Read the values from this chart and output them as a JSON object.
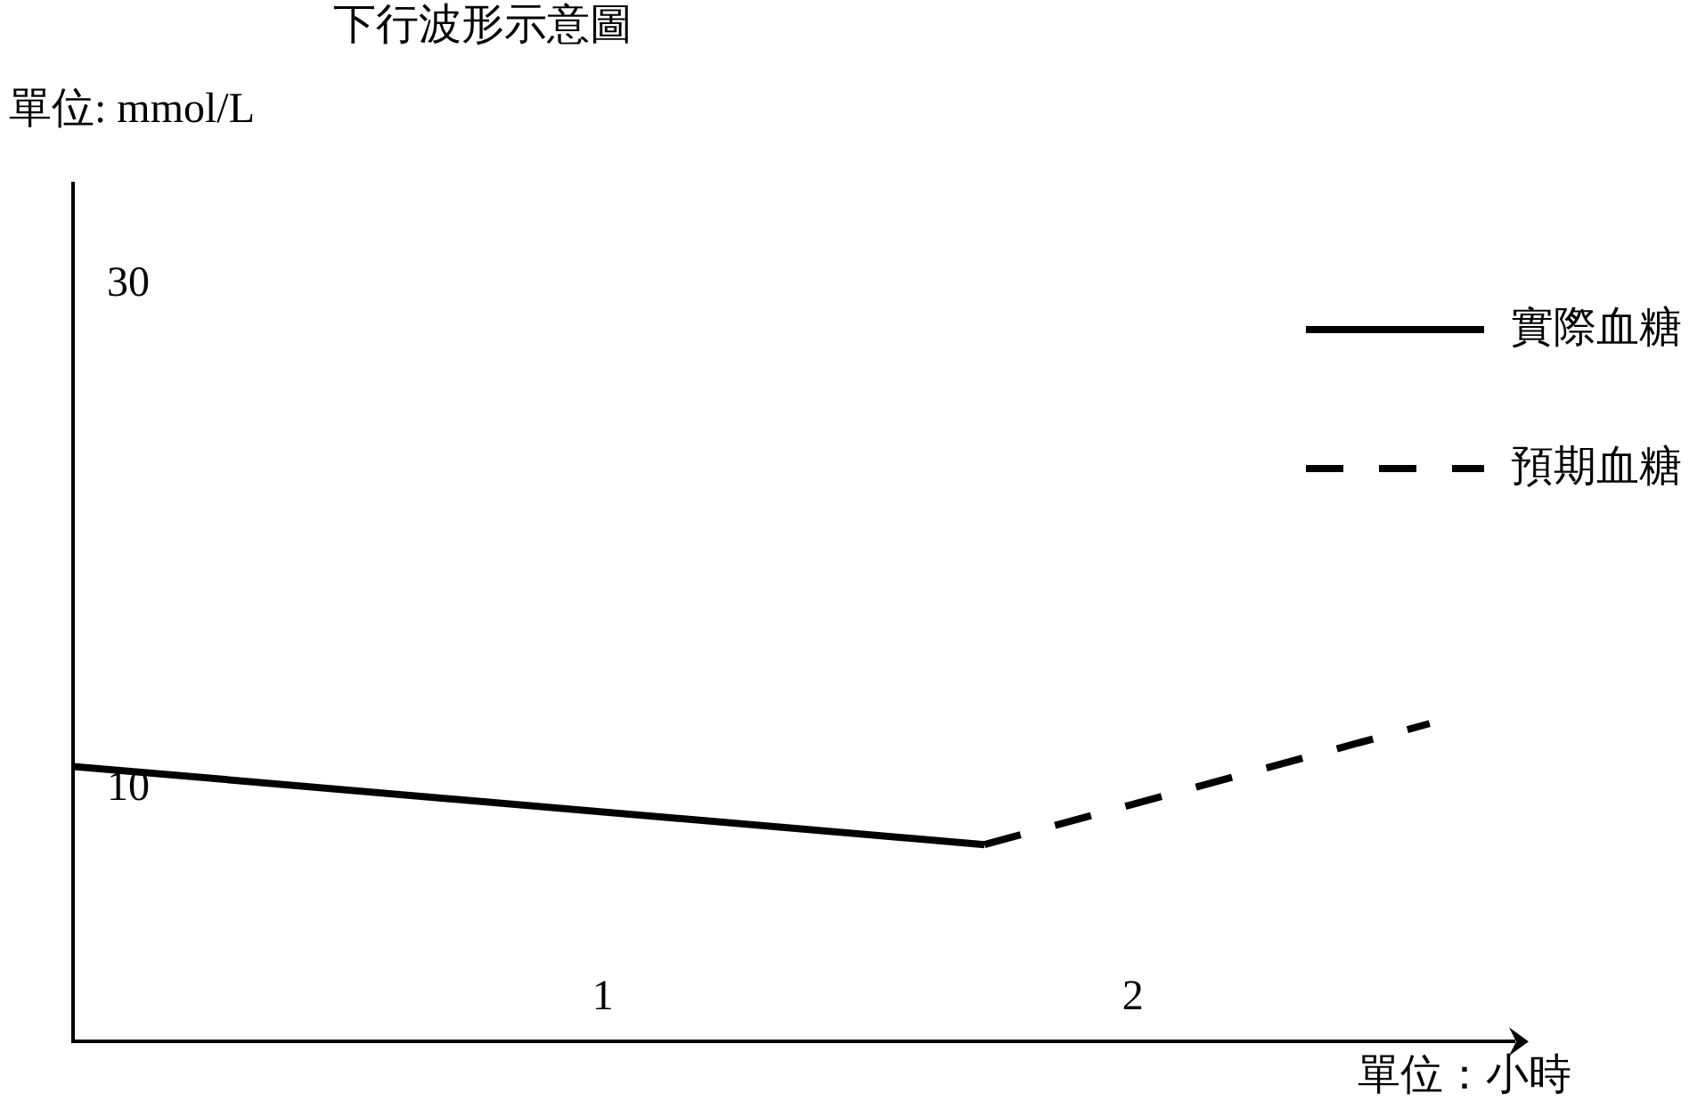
{
  "chart_data": {
    "type": "line",
    "title": "下行波形示意圖",
    "ylabel": "單位: mmol/L",
    "xlabel": "單位：小時",
    "series": [
      {
        "name": "實際血糖",
        "color": "#000000",
        "x": [
          0,
          1.72
        ],
        "values": [
          10.9,
          7.8
        ],
        "line_style": "solid"
      },
      {
        "name": "預期血糖",
        "color": "#000000",
        "x": [
          1.72,
          2.56
        ],
        "values": [
          7.8,
          12.6
        ],
        "line_style": "dashed"
      }
    ],
    "xlim": [
      0,
      2.72
    ],
    "ylim": [
      0,
      34
    ],
    "xticks": [
      1,
      2
    ],
    "yticks": [
      10,
      30
    ],
    "grid": false,
    "legend": "top right",
    "marker": "none"
  }
}
